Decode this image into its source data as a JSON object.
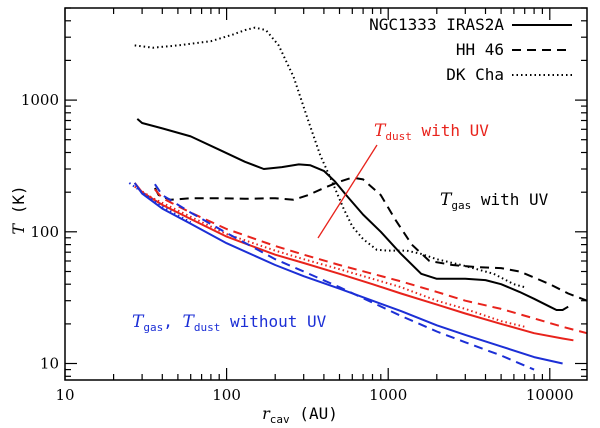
{
  "chart_data": {
    "type": "line",
    "xscale": "log",
    "yscale": "log",
    "xlim": [
      10,
      17000
    ],
    "ylim": [
      7.5,
      5000
    ],
    "grid": false,
    "legend_position": "top-right",
    "xlabel": {
      "main": "r",
      "sub": "cav",
      "unit": " (AU)"
    },
    "ylabel": {
      "main": "T",
      "unit": " (K)"
    },
    "x_ticks": [
      {
        "value": 10,
        "label": "10"
      },
      {
        "value": 100,
        "label": "100"
      },
      {
        "value": 1000,
        "label": "1000"
      },
      {
        "value": 10000,
        "label": "10000"
      }
    ],
    "y_ticks": [
      {
        "value": 10,
        "label": "10"
      },
      {
        "value": 100,
        "label": "100"
      },
      {
        "value": 1000,
        "label": "1000"
      }
    ],
    "legend": [
      {
        "label": "NGC1333 IRAS2A",
        "dash": "solid"
      },
      {
        "label": "HH 46",
        "dash": "dashed"
      },
      {
        "label": "DK Cha",
        "dash": "dotted"
      }
    ],
    "annotations": {
      "dust_uv": {
        "T": "T",
        "sub": "dust",
        "text": " with UV",
        "color": "#e8231c"
      },
      "gas_uv": {
        "T": "T",
        "sub": "gas",
        "text": " with UV",
        "color": "#000000"
      },
      "without_uv": {
        "T1": "T",
        "sub1": "gas",
        "sep": ", ",
        "T2": "T",
        "sub2": "dust",
        "text": " without UV",
        "color": "#1c2fd6"
      }
    },
    "series": [
      {
        "source": "NGC1333 IRAS2A",
        "quantity": "gas",
        "uv": true,
        "color": "#000000",
        "dash": "solid",
        "points": [
          [
            28,
            720
          ],
          [
            30,
            670
          ],
          [
            40,
            610
          ],
          [
            60,
            530
          ],
          [
            90,
            420
          ],
          [
            130,
            340
          ],
          [
            170,
            300
          ],
          [
            220,
            310
          ],
          [
            280,
            325
          ],
          [
            330,
            320
          ],
          [
            400,
            290
          ],
          [
            470,
            240
          ],
          [
            550,
            190
          ],
          [
            700,
            135
          ],
          [
            900,
            100
          ],
          [
            1200,
            68
          ],
          [
            1600,
            48
          ],
          [
            2000,
            44
          ],
          [
            3000,
            44
          ],
          [
            4000,
            43
          ],
          [
            5000,
            40
          ],
          [
            6500,
            35
          ],
          [
            8000,
            31
          ],
          [
            10000,
            27
          ],
          [
            11000,
            25.5
          ],
          [
            12000,
            25.5
          ],
          [
            13000,
            27
          ]
        ]
      },
      {
        "source": "HH 46",
        "quantity": "gas",
        "uv": true,
        "color": "#000000",
        "dash": "dashed",
        "points": [
          [
            36,
            215
          ],
          [
            38,
            190
          ],
          [
            45,
            175
          ],
          [
            60,
            180
          ],
          [
            90,
            180
          ],
          [
            130,
            178
          ],
          [
            200,
            180
          ],
          [
            260,
            175
          ],
          [
            320,
            190
          ],
          [
            400,
            215
          ],
          [
            500,
            240
          ],
          [
            600,
            258
          ],
          [
            700,
            250
          ],
          [
            900,
            190
          ],
          [
            1100,
            125
          ],
          [
            1400,
            80
          ],
          [
            1800,
            60
          ],
          [
            2500,
            56
          ],
          [
            3500,
            54
          ],
          [
            5000,
            53
          ],
          [
            6500,
            50
          ],
          [
            8000,
            45
          ],
          [
            10000,
            40
          ],
          [
            13000,
            34
          ],
          [
            17000,
            30
          ]
        ]
      },
      {
        "source": "DK Cha",
        "quantity": "gas",
        "uv": true,
        "color": "#000000",
        "dash": "dotted",
        "points": [
          [
            27,
            2600
          ],
          [
            35,
            2500
          ],
          [
            50,
            2600
          ],
          [
            80,
            2800
          ],
          [
            110,
            3150
          ],
          [
            130,
            3400
          ],
          [
            150,
            3550
          ],
          [
            175,
            3400
          ],
          [
            210,
            2600
          ],
          [
            260,
            1500
          ],
          [
            320,
            700
          ],
          [
            380,
            380
          ],
          [
            450,
            240
          ],
          [
            530,
            150
          ],
          [
            600,
            110
          ],
          [
            700,
            88
          ],
          [
            850,
            73
          ],
          [
            1000,
            72
          ],
          [
            1300,
            72
          ],
          [
            1600,
            68
          ],
          [
            2000,
            62
          ],
          [
            3000,
            55
          ],
          [
            4500,
            48
          ],
          [
            6000,
            40
          ],
          [
            7000,
            38
          ]
        ]
      },
      {
        "source": "NGC1333 IRAS2A",
        "quantity": "dust",
        "uv": true,
        "color": "#e8231c",
        "dash": "solid",
        "points": [
          [
            27,
            235
          ],
          [
            30,
            200
          ],
          [
            40,
            160
          ],
          [
            60,
            125
          ],
          [
            100,
            92
          ],
          [
            200,
            67
          ],
          [
            300,
            58
          ],
          [
            500,
            48
          ],
          [
            800,
            40
          ],
          [
            1200,
            34
          ],
          [
            2000,
            28
          ],
          [
            3000,
            24
          ],
          [
            5000,
            20
          ],
          [
            8000,
            17
          ],
          [
            12000,
            15.5
          ],
          [
            14000,
            15
          ]
        ]
      },
      {
        "source": "HH 46",
        "quantity": "dust",
        "uv": true,
        "color": "#e8231c",
        "dash": "dashed",
        "points": [
          [
            36,
            210
          ],
          [
            40,
            180
          ],
          [
            60,
            140
          ],
          [
            100,
            105
          ],
          [
            200,
            78
          ],
          [
            300,
            67
          ],
          [
            500,
            56
          ],
          [
            800,
            48
          ],
          [
            1200,
            42
          ],
          [
            2000,
            35
          ],
          [
            3000,
            30
          ],
          [
            5000,
            26
          ],
          [
            8000,
            22
          ],
          [
            12000,
            19
          ],
          [
            17000,
            17
          ]
        ]
      },
      {
        "source": "DK Cha",
        "quantity": "dust",
        "uv": true,
        "color": "#e8231c",
        "dash": "dotted",
        "points": [
          [
            27,
            220
          ],
          [
            35,
            180
          ],
          [
            60,
            130
          ],
          [
            100,
            96
          ],
          [
            200,
            72
          ],
          [
            300,
            62
          ],
          [
            500,
            52
          ],
          [
            800,
            44
          ],
          [
            1200,
            38
          ],
          [
            2000,
            30
          ],
          [
            3000,
            26
          ],
          [
            5000,
            21
          ],
          [
            7000,
            19
          ]
        ]
      },
      {
        "source": "NGC1333 IRAS2A",
        "quantity": "gas+dust",
        "uv": false,
        "color": "#1c2fd6",
        "dash": "solid",
        "points": [
          [
            27,
            235
          ],
          [
            30,
            195
          ],
          [
            40,
            150
          ],
          [
            60,
            115
          ],
          [
            100,
            82
          ],
          [
            200,
            56
          ],
          [
            300,
            46
          ],
          [
            500,
            37
          ],
          [
            800,
            30
          ],
          [
            1200,
            25
          ],
          [
            2000,
            19.5
          ],
          [
            3000,
            16.5
          ],
          [
            5000,
            13.5
          ],
          [
            8000,
            11.2
          ],
          [
            12000,
            10
          ]
        ]
      },
      {
        "source": "HH 46",
        "quantity": "gas+dust",
        "uv": false,
        "color": "#1c2fd6",
        "dash": "dashed",
        "points": [
          [
            36,
            230
          ],
          [
            40,
            190
          ],
          [
            60,
            140
          ],
          [
            100,
            98
          ],
          [
            200,
            62
          ],
          [
            300,
            50
          ],
          [
            500,
            38
          ],
          [
            800,
            29
          ],
          [
            1200,
            23
          ],
          [
            2000,
            17.5
          ],
          [
            3000,
            14.5
          ],
          [
            5000,
            11.5
          ],
          [
            8000,
            9
          ]
        ]
      },
      {
        "source": "DK Cha",
        "quantity": "gas+dust",
        "uv": false,
        "color": "#1c2fd6",
        "dash": "dotted",
        "points": [
          [
            25,
            235
          ],
          [
            30,
            200
          ],
          [
            40,
            155
          ],
          [
            60,
            118
          ]
        ]
      }
    ]
  }
}
